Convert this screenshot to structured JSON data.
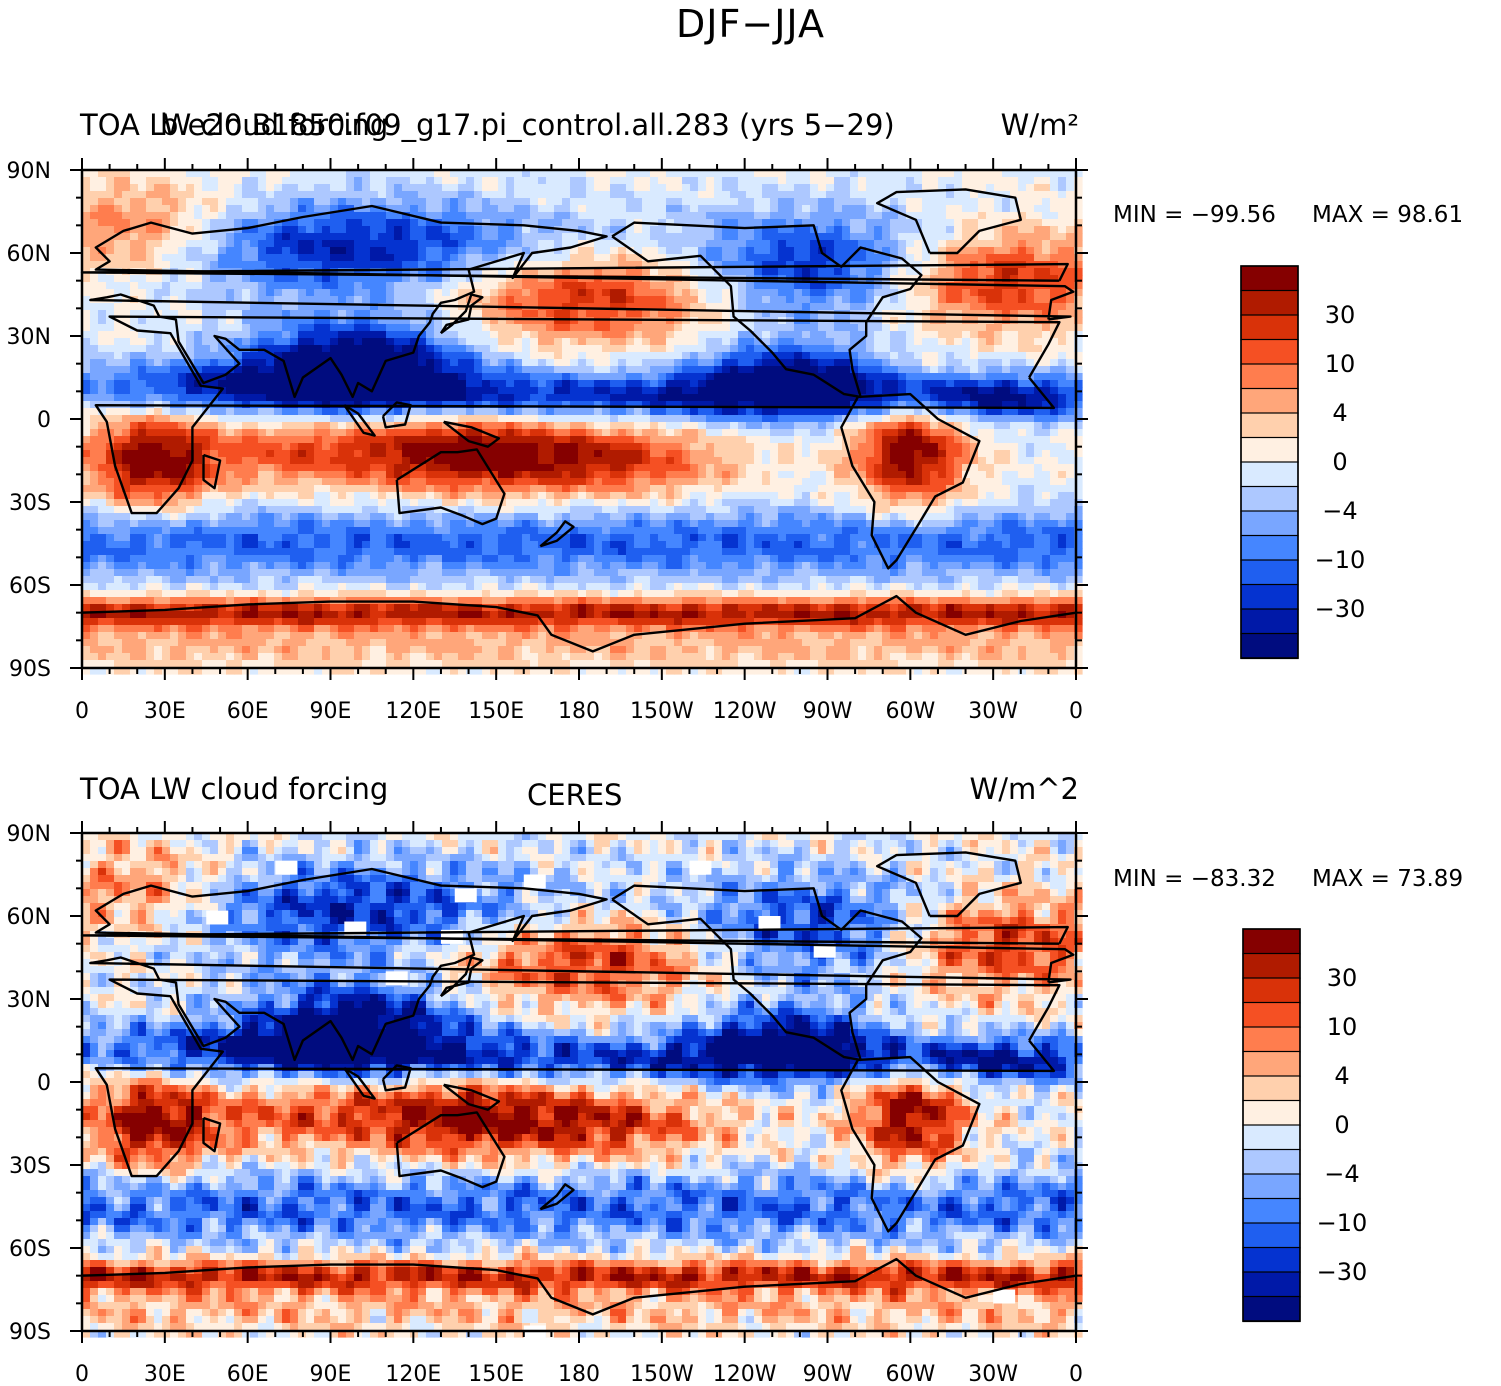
{
  "figure": {
    "title": "DJF−JJA"
  },
  "colors": [
    "#000c7f",
    "#0019a8",
    "#0533d0",
    "#1f5ff0",
    "#4586ff",
    "#79a6ff",
    "#adc8ff",
    "#d9eaff",
    "#fff0e2",
    "#ffd0ad",
    "#ffa67a",
    "#ff7d4e",
    "#f55023",
    "#d93209",
    "#b01b00",
    "#850000"
  ],
  "chart_data": [
    {
      "type": "heatmap",
      "left_title": "TOA LW cloud forcing",
      "center_title": "b.e20.B1850.f09_g17.pi_control.all.283 (yrs 5−29)",
      "units": "W/m²",
      "min_label": "MIN = −99.56",
      "max_label": "MAX =  98.61",
      "min": -99.56,
      "max": 98.61,
      "xticks": [
        "0",
        "30E",
        "60E",
        "90E",
        "120E",
        "150E",
        "180",
        "150W",
        "120W",
        "90W",
        "60W",
        "30W",
        "0"
      ],
      "yticks": [
        "90N",
        "60N",
        "30N",
        "0",
        "30S",
        "60S",
        "90S"
      ],
      "colorbar_labels": [
        "30",
        "10",
        "4",
        "0",
        "−4",
        "−10",
        "−30"
      ]
    },
    {
      "type": "heatmap",
      "left_title": "TOA LW cloud forcing",
      "center_title": "CERES",
      "units": "W/m^2",
      "min_label": "MIN = −83.32",
      "max_label": "MAX =  73.89",
      "min": -83.32,
      "max": 73.89,
      "xticks": [
        "0",
        "30E",
        "60E",
        "90E",
        "120E",
        "150E",
        "180",
        "150W",
        "120W",
        "90W",
        "60W",
        "30W",
        "0"
      ],
      "yticks": [
        "90N",
        "60N",
        "30N",
        "0",
        "30S",
        "60S",
        "90S"
      ],
      "colorbar_labels": [
        "30",
        "10",
        "4",
        "0",
        "−4",
        "−10",
        "−30"
      ]
    }
  ]
}
